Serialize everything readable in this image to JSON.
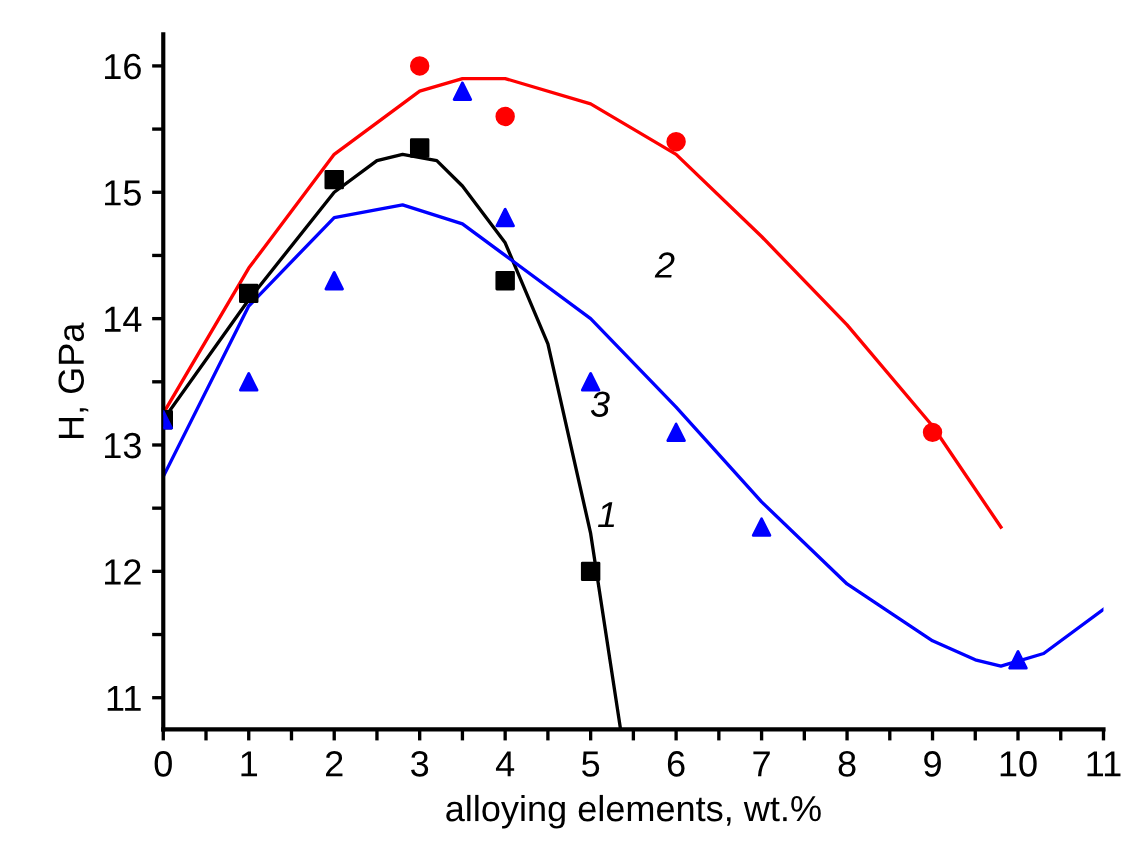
{
  "chart_data": {
    "type": "scatter",
    "xlabel": "alloying elements, wt.%",
    "ylabel": "H, GPa",
    "xlim": [
      0,
      11
    ],
    "ylim": [
      10.75,
      16.25
    ],
    "xticks": [
      0,
      {
        "value": 0.5,
        "label": null
      },
      1,
      {
        "value": 1.5,
        "label": null
      },
      2,
      {
        "value": 2.5,
        "label": null
      },
      3,
      {
        "value": 3.5,
        "label": null
      },
      4,
      {
        "value": 4.5,
        "label": null
      },
      5,
      {
        "value": 5.5,
        "label": null
      },
      6,
      {
        "value": 6.5,
        "label": null
      },
      7,
      {
        "value": 7.5,
        "label": null
      },
      8,
      {
        "value": 8.5,
        "label": null
      },
      9,
      {
        "value": 9.5,
        "label": null
      },
      10,
      {
        "value": 10.5,
        "label": null
      },
      11
    ],
    "yticks": [
      11,
      {
        "value": 11.5,
        "label": null
      },
      12,
      {
        "value": 12.5,
        "label": null
      },
      13,
      {
        "value": 13.5,
        "label": null
      },
      14,
      {
        "value": 14.5,
        "label": null
      },
      15,
      {
        "value": 15.5,
        "label": null
      },
      16
    ],
    "grid": false,
    "legend": false,
    "series": [
      {
        "type": "line",
        "color": "#000000",
        "marker": "none",
        "line_style": "solid",
        "x": [
          0,
          1,
          2,
          2.5,
          2.8,
          3.2,
          3.5,
          4,
          4.5,
          5,
          5.35
        ],
        "values": [
          13.2,
          14.15,
          15.0,
          15.25,
          15.3,
          15.25,
          15.05,
          14.6,
          13.8,
          12.3,
          10.75
        ]
      },
      {
        "type": "line",
        "color": "#ff0000",
        "marker": "none",
        "line_style": "solid",
        "x": [
          0,
          1,
          2,
          3,
          3.5,
          4,
          5,
          6,
          7,
          8,
          9,
          9.8
        ],
        "values": [
          13.25,
          14.4,
          15.3,
          15.8,
          15.9,
          15.9,
          15.7,
          15.3,
          14.65,
          13.95,
          13.15,
          12.35
        ]
      },
      {
        "type": "line",
        "color": "#0000ff",
        "marker": "none",
        "line_style": "solid",
        "x": [
          0,
          1,
          2,
          2.8,
          3.5,
          4,
          5,
          6,
          7,
          8,
          9,
          9.5,
          9.8,
          10.3,
          11
        ],
        "values": [
          12.75,
          14.1,
          14.8,
          14.9,
          14.75,
          14.5,
          14.0,
          13.3,
          12.55,
          11.9,
          11.45,
          11.3,
          11.25,
          11.35,
          11.7
        ]
      },
      {
        "color": "#000000",
        "marker": "square",
        "x": [
          0,
          1,
          2,
          3,
          4,
          5
        ],
        "values": [
          13.2,
          14.2,
          15.1,
          15.35,
          14.3,
          12.0
        ]
      },
      {
        "color": "#ff0000",
        "marker": "circle",
        "x": [
          3,
          4,
          6,
          9
        ],
        "values": [
          16.0,
          15.6,
          15.4,
          13.1
        ]
      },
      {
        "color": "#0000ff",
        "marker": "triangle",
        "x": [
          0,
          1,
          2,
          3.5,
          4,
          5,
          6,
          7,
          10
        ],
        "values": [
          13.2,
          13.5,
          14.3,
          15.8,
          14.8,
          13.5,
          13.1,
          12.35,
          11.3
        ]
      }
    ],
    "annotations": [
      {
        "text": "1",
        "x": 4.9,
        "y": 12.6
      },
      {
        "text": "2",
        "x": 6,
        "y": 15.3
      },
      {
        "text": "3",
        "x": 5.5,
        "y": 13.65
      }
    ]
  }
}
